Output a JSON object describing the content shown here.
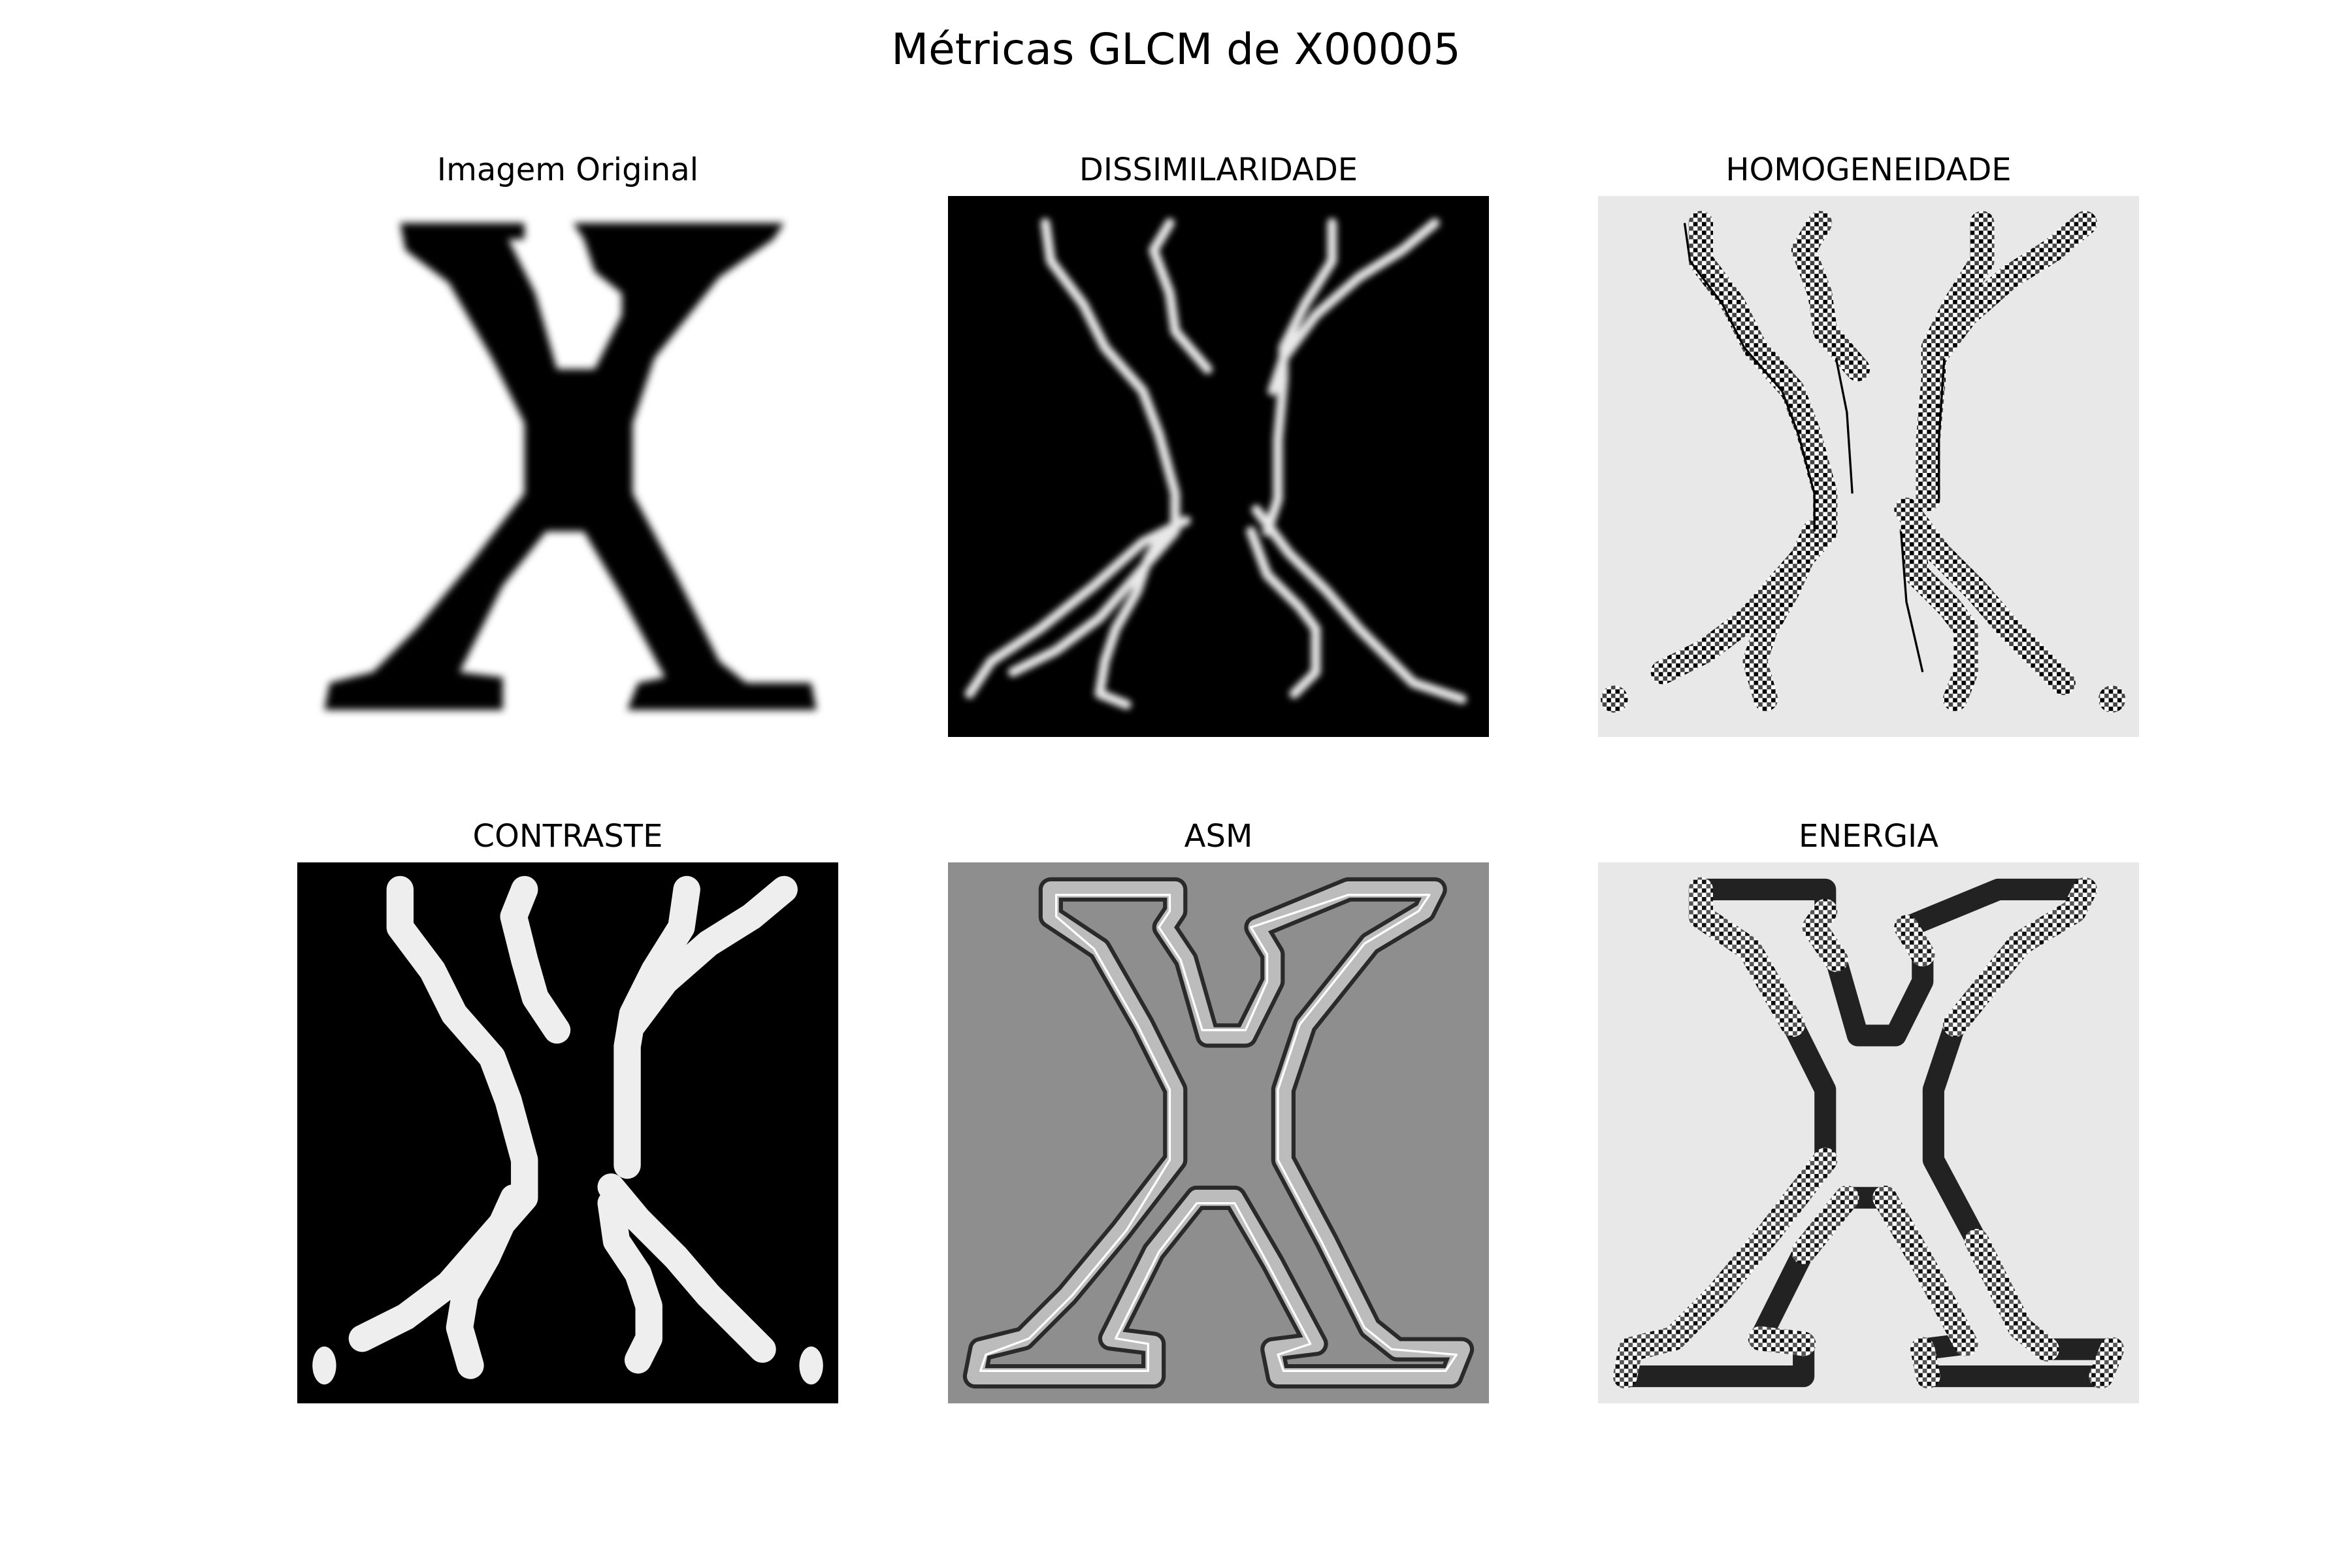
{
  "figure": {
    "title": "Métricas GLCM de X00005"
  },
  "panels": [
    {
      "key": "orig",
      "title": "Imagem Original",
      "style": "original",
      "background": "#ffffff"
    },
    {
      "key": "dis",
      "title": "DISSIMILARIDADE",
      "style": "dissimilarity",
      "background": "#000000"
    },
    {
      "key": "hom",
      "title": "HOMOGENEIDADE",
      "style": "homogeneity",
      "background": "#e8e8e8"
    },
    {
      "key": "con",
      "title": "CONTRASTE",
      "style": "contrast",
      "background": "#000000"
    },
    {
      "key": "asm",
      "title": "ASM",
      "style": "asm",
      "background": "#8e8e8e"
    },
    {
      "key": "ene",
      "title": "ENERGIA",
      "style": "energy",
      "background": "#e8e8e8"
    }
  ]
}
